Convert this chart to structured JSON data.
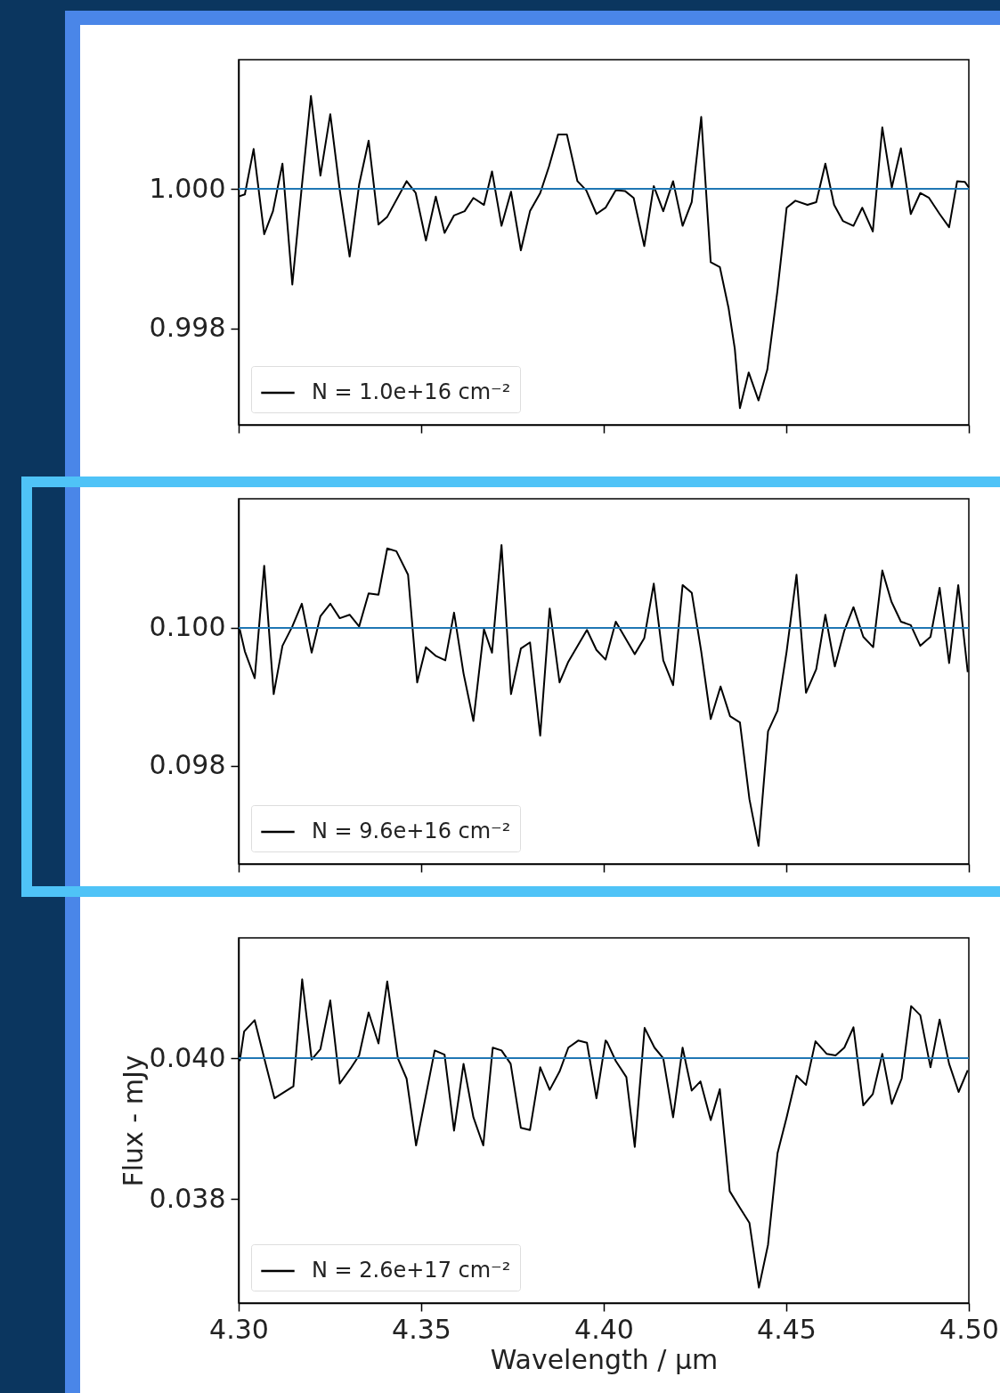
{
  "chart_data": [
    {
      "type": "line",
      "x": [
        4.3,
        4.3017,
        4.3041,
        4.307,
        4.3094,
        4.312,
        4.3147,
        4.3172,
        4.3198,
        4.3224,
        4.3251,
        4.3277,
        4.3304,
        4.333,
        4.3356,
        4.3383,
        4.3407,
        4.346,
        4.3485,
        4.3513,
        4.354,
        4.3564,
        4.359,
        4.3619,
        4.3643,
        4.3672,
        4.3694,
        4.372,
        4.3746,
        4.3773,
        4.3798,
        4.3826,
        4.385,
        4.3875,
        4.3899,
        4.3928,
        4.3952,
        4.398,
        4.4005,
        4.4033,
        4.4058,
        4.4082,
        4.4111,
        4.4137,
        4.4163,
        4.419,
        4.4216,
        4.4241,
        4.4267,
        4.4293,
        4.4318,
        4.4342,
        4.4359,
        4.4373,
        4.4397,
        4.4424,
        4.4448,
        4.4476,
        4.4501,
        4.4525,
        4.4558,
        4.4582,
        4.4607,
        4.4631,
        4.4655,
        4.4684,
        4.4708,
        4.4737,
        4.4763,
        4.4789,
        4.4814,
        4.4841,
        4.4867,
        4.4891,
        4.492,
        4.4946,
        4.4968,
        4.4989,
        4.5
      ],
      "series": [
        {
          "name": "N = 1.0e+16 cm⁻²",
          "color": "#000000",
          "values": [
            0.99989,
            0.99992,
            1.00057,
            0.99935,
            0.99968,
            1.00036,
            0.99863,
            0.99998,
            1.00133,
            1.00019,
            1.00107,
            0.99998,
            0.99903,
            1.00006,
            1.00069,
            0.99949,
            0.9996,
            1.00011,
            0.99994,
            0.99926,
            0.99989,
            0.99937,
            0.99962,
            0.99968,
            0.99987,
            0.99977,
            1.00025,
            0.99947,
            0.99996,
            0.99912,
            0.99968,
            0.99994,
            1.00032,
            1.00078,
            1.00078,
            1.00011,
            0.99998,
            0.99964,
            0.99973,
            0.99998,
            0.99997,
            0.99987,
            0.99918,
            1.00004,
            0.99968,
            1.00011,
            0.99947,
            0.99981,
            1.00103,
            0.99895,
            0.99888,
            0.99829,
            0.99771,
            0.99686,
            0.99737,
            0.99697,
            0.99741,
            0.99855,
            0.99973,
            0.99983,
            0.99977,
            0.99981,
            1.00036,
            0.99977,
            0.99954,
            0.99947,
            0.99973,
            0.99939,
            1.00088,
            1.00002,
            1.00058,
            0.99964,
            0.99994,
            0.99987,
            0.99964,
            0.99945,
            1.00011,
            1.0001,
            1.00002
          ]
        }
      ],
      "xlim": [
        4.3,
        4.5
      ],
      "xticks": [
        {
          "value": 4.3,
          "label": null
        },
        {
          "value": 4.35,
          "label": null
        },
        {
          "value": 4.4,
          "label": null
        },
        {
          "value": 4.45,
          "label": null
        },
        {
          "value": 4.5,
          "label": null
        }
      ],
      "ylim": [
        0.99662,
        1.00185
      ],
      "yticks": [
        {
          "value": 0.998,
          "label": "0.998"
        },
        {
          "value": 1.0,
          "label": "1.000"
        }
      ],
      "ref_lines": [
        {
          "axis": "y",
          "value": 1.0,
          "color": "#1f77b4"
        }
      ],
      "legend": "bottom left",
      "tick_labels": "y"
    },
    {
      "type": "line",
      "x": [
        4.3003,
        4.3017,
        4.3044,
        4.307,
        4.3096,
        4.312,
        4.3147,
        4.3173,
        4.32,
        4.3224,
        4.3251,
        4.3277,
        4.3304,
        4.333,
        4.3356,
        4.3383,
        4.3407,
        4.3432,
        4.3464,
        4.3489,
        4.3513,
        4.3541,
        4.3566,
        4.359,
        4.3616,
        4.3643,
        4.3672,
        4.3694,
        4.372,
        4.3746,
        4.3773,
        4.3798,
        4.3826,
        4.3852,
        4.3879,
        4.3903,
        4.3954,
        4.398,
        4.4005,
        4.4033,
        4.4085,
        4.4111,
        4.4137,
        4.4163,
        4.419,
        4.4216,
        4.4241,
        4.4267,
        4.4293,
        4.432,
        4.4346,
        4.4373,
        4.4399,
        4.4424,
        4.445,
        4.4476,
        4.4501,
        4.4528,
        4.4554,
        4.4582,
        4.4607,
        4.4633,
        4.4659,
        4.4684,
        4.4711,
        4.4738,
        4.4763,
        4.4788,
        4.4814,
        4.4841,
        4.4867,
        4.4895,
        4.492,
        4.4946,
        4.4971,
        4.4997
      ],
      "series": [
        {
          "name": "N = 9.6e+16 cm⁻²",
          "color": "#000000",
          "values": [
            0.09998,
            0.09966,
            0.09927,
            0.1009,
            0.09904,
            0.09974,
            0.10002,
            0.10035,
            0.09964,
            0.10017,
            0.10035,
            0.10014,
            0.10019,
            0.10002,
            0.1005,
            0.10048,
            0.10115,
            0.10111,
            0.10077,
            0.09921,
            0.09972,
            0.09959,
            0.09953,
            0.10022,
            0.09934,
            0.09865,
            0.09998,
            0.09964,
            0.1012,
            0.09904,
            0.0997,
            0.09979,
            0.09844,
            0.10028,
            0.09921,
            0.09951,
            0.09997,
            0.09968,
            0.09954,
            0.10009,
            0.09962,
            0.09985,
            0.10064,
            0.09953,
            0.09917,
            0.10062,
            0.10051,
            0.09966,
            0.09868,
            0.09915,
            0.09872,
            0.09863,
            0.09752,
            0.09684,
            0.0985,
            0.0988,
            0.09966,
            0.10077,
            0.09906,
            0.0994,
            0.10019,
            0.09944,
            0.09996,
            0.1003,
            0.09987,
            0.09972,
            0.10083,
            0.10038,
            0.10009,
            0.10004,
            0.09974,
            0.09987,
            0.10058,
            0.09949,
            0.10062,
            0.09936
          ]
        }
      ],
      "xlim": [
        4.3,
        4.5
      ],
      "xticks": [
        {
          "value": 4.3,
          "label": null
        },
        {
          "value": 4.35,
          "label": null
        },
        {
          "value": 4.4,
          "label": null
        },
        {
          "value": 4.45,
          "label": null
        },
        {
          "value": 4.5,
          "label": null
        }
      ],
      "ylim": [
        0.09658,
        0.10187
      ],
      "yticks": [
        {
          "value": 0.098,
          "label": "0.098"
        },
        {
          "value": 0.1,
          "label": "0.100"
        }
      ],
      "ref_lines": [
        {
          "axis": "y",
          "value": 0.1,
          "color": "#1f77b4"
        }
      ],
      "legend": "bottom left",
      "tick_labels": "y"
    },
    {
      "type": "line",
      "xlabel": "Wavelength / μm",
      "ylabel": "Flux - mJy",
      "x": [
        4.3003,
        4.3015,
        4.3044,
        4.307,
        4.3098,
        4.315,
        4.3174,
        4.32,
        4.3224,
        4.3251,
        4.3277,
        4.3306,
        4.333,
        4.3356,
        4.3383,
        4.3407,
        4.3436,
        4.346,
        4.3486,
        4.3537,
        4.3564,
        4.359,
        4.3616,
        4.3643,
        4.367,
        4.3696,
        4.372,
        4.3745,
        4.3773,
        4.3798,
        4.3826,
        4.3852,
        4.3879,
        4.3903,
        4.393,
        4.3954,
        4.398,
        4.4005,
        4.4009,
        4.4033,
        4.4062,
        4.4085,
        4.4112,
        4.4139,
        4.4163,
        4.419,
        4.4216,
        4.4241,
        4.4265,
        4.4293,
        4.4318,
        4.4345,
        4.4371,
        4.4399,
        4.4425,
        4.445,
        4.4476,
        4.4501,
        4.4528,
        4.4554,
        4.458,
        4.4611,
        4.4635,
        4.4659,
        4.4684,
        4.4711,
        4.4737,
        4.4763,
        4.4789,
        4.4816,
        4.4842,
        4.4867,
        4.4895,
        4.492,
        4.4946,
        4.4972,
        4.4997
      ],
      "series": [
        {
          "name": "N = 2.6e+17 cm⁻²",
          "color": "#000000",
          "values": [
            0.03996,
            0.04038,
            0.04054,
            0.04,
            0.03943,
            0.0396,
            0.04112,
            0.03998,
            0.04013,
            0.04082,
            0.03964,
            0.03985,
            0.04004,
            0.04065,
            0.04021,
            0.04109,
            0.04,
            0.03971,
            0.03876,
            0.04011,
            0.04005,
            0.03897,
            0.03992,
            0.03916,
            0.03876,
            0.04015,
            0.04011,
            0.03992,
            0.03901,
            0.03898,
            0.03987,
            0.03955,
            0.03981,
            0.04015,
            0.04025,
            0.04022,
            0.03943,
            0.04025,
            0.04023,
            0.03996,
            0.03973,
            0.03874,
            0.04043,
            0.04015,
            0.04,
            0.03916,
            0.04015,
            0.03954,
            0.03967,
            0.03912,
            0.03956,
            0.03811,
            0.03789,
            0.03766,
            0.03674,
            0.03735,
            0.03865,
            0.03916,
            0.03975,
            0.03962,
            0.04024,
            0.04006,
            0.04004,
            0.04015,
            0.04044,
            0.03933,
            0.03949,
            0.04006,
            0.03935,
            0.03971,
            0.04074,
            0.04061,
            0.03987,
            0.04055,
            0.03992,
            0.03952,
            0.03983
          ]
        }
      ],
      "xlim": [
        4.3,
        4.5
      ],
      "xticks": [
        {
          "value": 4.3,
          "label": "4.30"
        },
        {
          "value": 4.35,
          "label": "4.35"
        },
        {
          "value": 4.4,
          "label": "4.40"
        },
        {
          "value": 4.45,
          "label": "4.45"
        },
        {
          "value": 4.5,
          "label": "4.50"
        }
      ],
      "ylim": [
        0.03652,
        0.04171
      ],
      "yticks": [
        {
          "value": 0.038,
          "label": "0.038"
        },
        {
          "value": 0.04,
          "label": "0.040"
        }
      ],
      "ref_lines": [
        {
          "axis": "y",
          "value": 0.04,
          "color": "#1f77b4"
        }
      ],
      "legend": "bottom left"
    }
  ]
}
